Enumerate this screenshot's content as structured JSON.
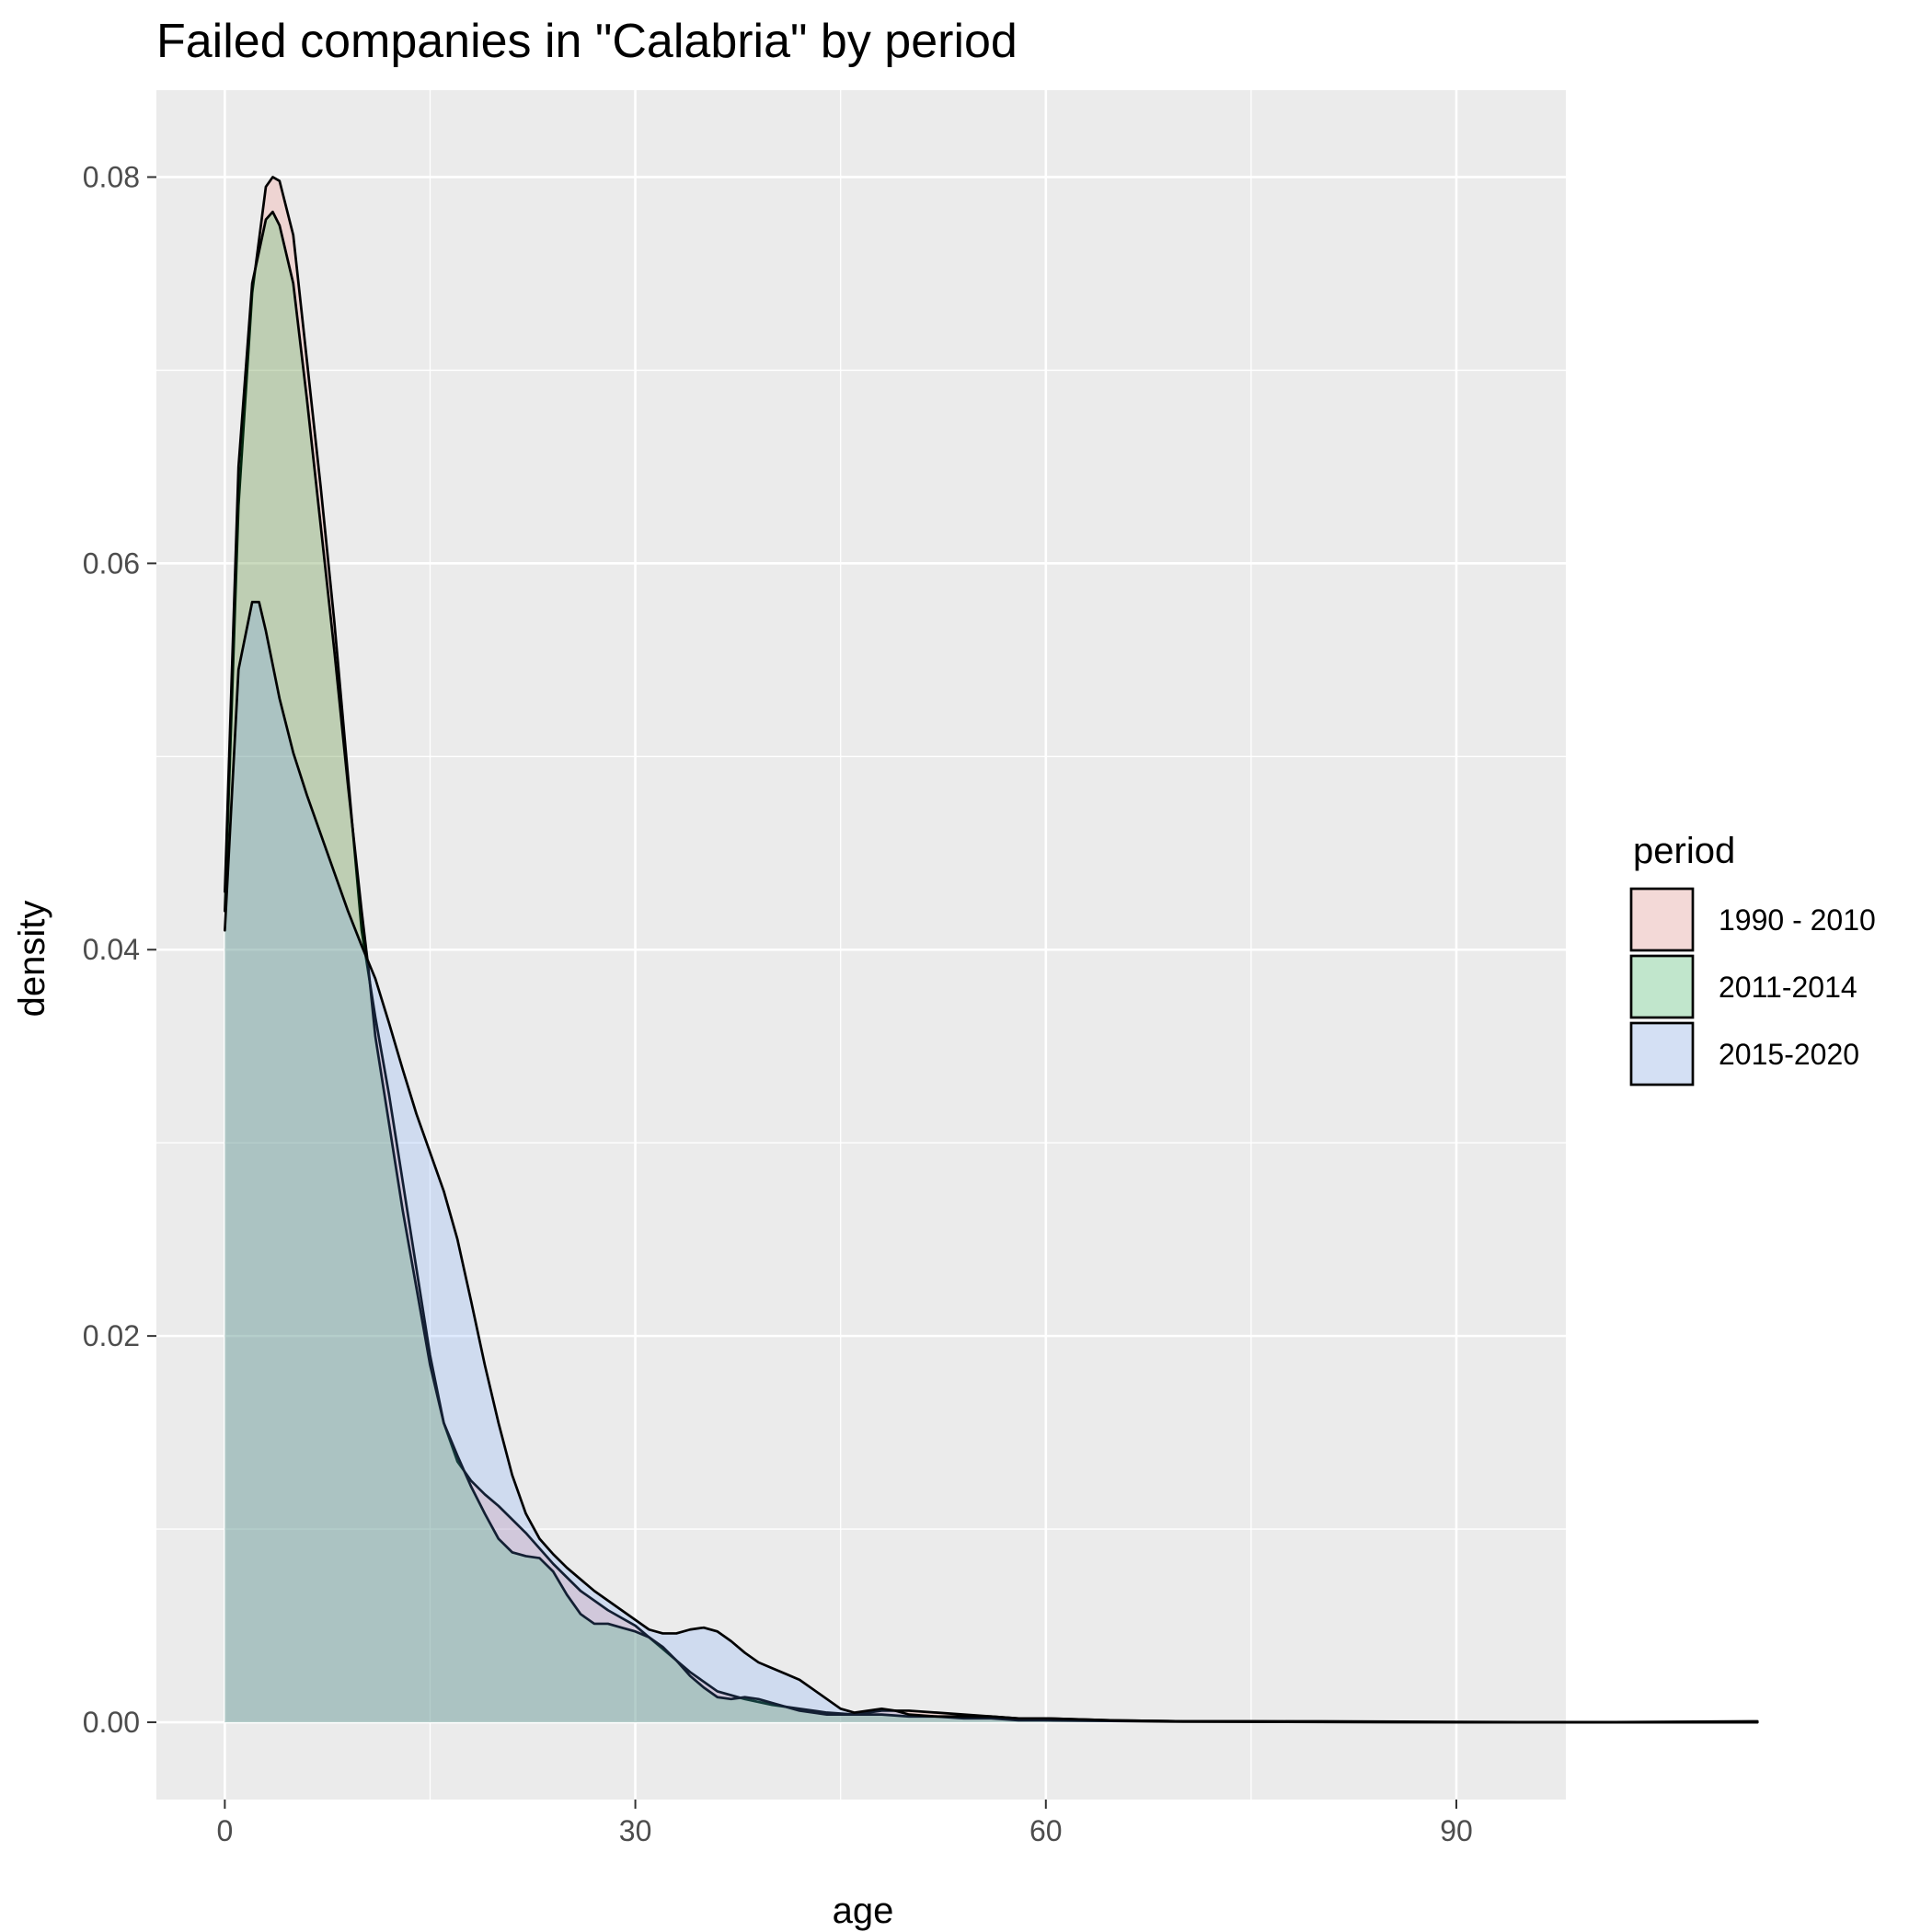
{
  "chart_data": {
    "type": "area",
    "title": "Failed companies in \"Calabria\" by period",
    "xlabel": "age",
    "ylabel": "density",
    "xlim": [
      -5,
      98
    ],
    "ylim": [
      -0.004,
      0.0845
    ],
    "x_ticks": [
      0,
      30,
      60,
      90
    ],
    "x_minor_ticks": [
      15,
      45,
      75,
      105
    ],
    "y_ticks": [
      0.0,
      0.02,
      0.04,
      0.06,
      0.08
    ],
    "y_tick_labels": [
      "0.00",
      "0.02",
      "0.04",
      "0.06",
      "0.08"
    ],
    "y_minor_ticks": [
      0.01,
      0.03,
      0.05,
      0.07
    ],
    "grid": true,
    "panel_background": "#EBEBEB",
    "grid_color": "#FFFFFF",
    "legend": {
      "title": "period",
      "placement": "right"
    },
    "series": [
      {
        "name": "1990 - 2010",
        "fill": "#F8766D",
        "points": [
          [
            0,
            0.042
          ],
          [
            1,
            0.063
          ],
          [
            2,
            0.074
          ],
          [
            3,
            0.0795
          ],
          [
            3.5,
            0.08
          ],
          [
            4,
            0.0798
          ],
          [
            5,
            0.077
          ],
          [
            6,
            0.0705
          ],
          [
            7,
            0.064
          ],
          [
            8,
            0.057
          ],
          [
            9,
            0.049
          ],
          [
            10,
            0.041
          ],
          [
            11,
            0.0365
          ],
          [
            12,
            0.0325
          ],
          [
            13,
            0.028
          ],
          [
            14,
            0.0235
          ],
          [
            15,
            0.019
          ],
          [
            16,
            0.0155
          ],
          [
            17,
            0.0135
          ],
          [
            18,
            0.0125
          ],
          [
            19,
            0.0118
          ],
          [
            20,
            0.0112
          ],
          [
            22,
            0.0098
          ],
          [
            24,
            0.0082
          ],
          [
            26,
            0.0068
          ],
          [
            28,
            0.0058
          ],
          [
            30,
            0.005
          ],
          [
            32,
            0.0038
          ],
          [
            34,
            0.0026
          ],
          [
            36,
            0.0016
          ],
          [
            38,
            0.0012
          ],
          [
            40,
            0.0009
          ],
          [
            42,
            0.0007
          ],
          [
            44,
            0.0005
          ],
          [
            46,
            0.0004
          ],
          [
            48,
            0.0006
          ],
          [
            50,
            0.0006
          ],
          [
            52,
            0.0005
          ],
          [
            54,
            0.0004
          ],
          [
            56,
            0.0003
          ],
          [
            58,
            0.0002
          ],
          [
            60,
            0.0002
          ],
          [
            65,
            0.0001
          ],
          [
            70,
            5e-05
          ],
          [
            75,
            5e-05
          ],
          [
            80,
            2e-05
          ],
          [
            90,
            0.0
          ],
          [
            100,
            0.0
          ],
          [
            112,
            0.0
          ]
        ]
      },
      {
        "name": "2011-2014",
        "fill": "#00BA38",
        "points": [
          [
            0,
            0.043
          ],
          [
            1,
            0.065
          ],
          [
            2,
            0.0745
          ],
          [
            3,
            0.0778
          ],
          [
            3.5,
            0.0782
          ],
          [
            4,
            0.0775
          ],
          [
            5,
            0.0745
          ],
          [
            6,
            0.0685
          ],
          [
            7,
            0.062
          ],
          [
            8,
            0.0555
          ],
          [
            9,
            0.0485
          ],
          [
            10,
            0.042
          ],
          [
            10.5,
            0.039
          ],
          [
            11,
            0.0355
          ],
          [
            12,
            0.031
          ],
          [
            13,
            0.0265
          ],
          [
            14,
            0.0225
          ],
          [
            15,
            0.0185
          ],
          [
            16,
            0.0155
          ],
          [
            17,
            0.0138
          ],
          [
            18,
            0.0122
          ],
          [
            19,
            0.0108
          ],
          [
            20,
            0.0095
          ],
          [
            21,
            0.0088
          ],
          [
            22,
            0.0086
          ],
          [
            23,
            0.0085
          ],
          [
            24,
            0.0078
          ],
          [
            25,
            0.0066
          ],
          [
            26,
            0.0056
          ],
          [
            27,
            0.0051
          ],
          [
            28,
            0.0051
          ],
          [
            29,
            0.0049
          ],
          [
            30,
            0.0047
          ],
          [
            31,
            0.0044
          ],
          [
            32,
            0.0039
          ],
          [
            33,
            0.0032
          ],
          [
            34,
            0.0024
          ],
          [
            35,
            0.0018
          ],
          [
            36,
            0.0013
          ],
          [
            37,
            0.0012
          ],
          [
            38,
            0.0013
          ],
          [
            39,
            0.0012
          ],
          [
            40,
            0.001
          ],
          [
            42,
            0.0006
          ],
          [
            44,
            0.0004
          ],
          [
            46,
            0.0004
          ],
          [
            48,
            0.0004
          ],
          [
            50,
            0.0003
          ],
          [
            52,
            0.0003
          ],
          [
            54,
            0.0002
          ],
          [
            56,
            0.0002
          ],
          [
            58,
            0.0001
          ],
          [
            60,
            0.0001
          ],
          [
            70,
            3e-05
          ],
          [
            80,
            1e-05
          ],
          [
            100,
            0.0
          ],
          [
            112,
            0.0
          ]
        ]
      },
      {
        "name": "2015-2020",
        "fill": "#619CFF",
        "points": [
          [
            0,
            0.041
          ],
          [
            1,
            0.0545
          ],
          [
            2,
            0.058
          ],
          [
            2.5,
            0.058
          ],
          [
            3,
            0.0565
          ],
          [
            4,
            0.053
          ],
          [
            5,
            0.0502
          ],
          [
            6,
            0.048
          ],
          [
            7,
            0.046
          ],
          [
            8,
            0.044
          ],
          [
            9,
            0.042
          ],
          [
            10,
            0.0402
          ],
          [
            11,
            0.0385
          ],
          [
            12,
            0.0362
          ],
          [
            13,
            0.0338
          ],
          [
            14,
            0.0315
          ],
          [
            15,
            0.0295
          ],
          [
            16,
            0.0275
          ],
          [
            17,
            0.025
          ],
          [
            18,
            0.0218
          ],
          [
            19,
            0.0185
          ],
          [
            20,
            0.0155
          ],
          [
            21,
            0.0128
          ],
          [
            22,
            0.0108
          ],
          [
            23,
            0.0095
          ],
          [
            24,
            0.0087
          ],
          [
            25,
            0.008
          ],
          [
            26,
            0.0074
          ],
          [
            27,
            0.0068
          ],
          [
            28,
            0.0063
          ],
          [
            29,
            0.0058
          ],
          [
            30,
            0.0053
          ],
          [
            31,
            0.0048
          ],
          [
            32,
            0.0046
          ],
          [
            33,
            0.0046
          ],
          [
            34,
            0.0048
          ],
          [
            35,
            0.0049
          ],
          [
            36,
            0.0047
          ],
          [
            37,
            0.0042
          ],
          [
            38,
            0.0036
          ],
          [
            39,
            0.0031
          ],
          [
            40,
            0.0028
          ],
          [
            41,
            0.0025
          ],
          [
            42,
            0.0022
          ],
          [
            43,
            0.0017
          ],
          [
            44,
            0.0012
          ],
          [
            45,
            0.0007
          ],
          [
            46,
            0.0005
          ],
          [
            47,
            0.0006
          ],
          [
            48,
            0.0007
          ],
          [
            49,
            0.0006
          ],
          [
            50,
            0.0004
          ],
          [
            52,
            0.0003
          ],
          [
            54,
            0.0003
          ],
          [
            56,
            0.0003
          ],
          [
            58,
            0.0002
          ],
          [
            60,
            0.0002
          ],
          [
            65,
            0.0001
          ],
          [
            70,
            5e-05
          ],
          [
            80,
            5e-05
          ],
          [
            90,
            2e-05
          ],
          [
            100,
            0.0
          ],
          [
            112,
            5e-05
          ]
        ]
      }
    ]
  }
}
